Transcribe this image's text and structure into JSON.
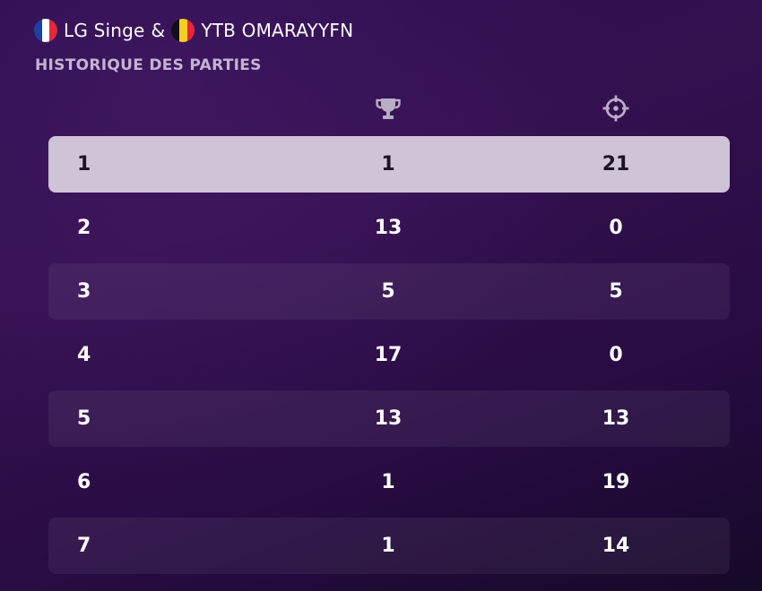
{
  "header": {
    "player1": {
      "name": "LG Singe",
      "flag_icon": "france-flag-icon"
    },
    "separator": "&",
    "player2": {
      "name": "YTB OMARAYYFN",
      "flag_icon": "belgium-flag-icon"
    }
  },
  "section_title": "HISTORIQUE DES PARTIES",
  "columns": {
    "wins_icon": "trophy-icon",
    "kills_icon": "crosshair-icon"
  },
  "colors": {
    "highlight_row": "#cfc3d8",
    "background": "#2a0b4a",
    "title": "#c4b4d2",
    "icon": "#b9aec4"
  },
  "rows": [
    {
      "rank": "1",
      "wins": "1",
      "kills": "21"
    },
    {
      "rank": "2",
      "wins": "13",
      "kills": "0"
    },
    {
      "rank": "3",
      "wins": "5",
      "kills": "5"
    },
    {
      "rank": "4",
      "wins": "17",
      "kills": "0"
    },
    {
      "rank": "5",
      "wins": "13",
      "kills": "13"
    },
    {
      "rank": "6",
      "wins": "1",
      "kills": "19"
    },
    {
      "rank": "7",
      "wins": "1",
      "kills": "14"
    }
  ]
}
